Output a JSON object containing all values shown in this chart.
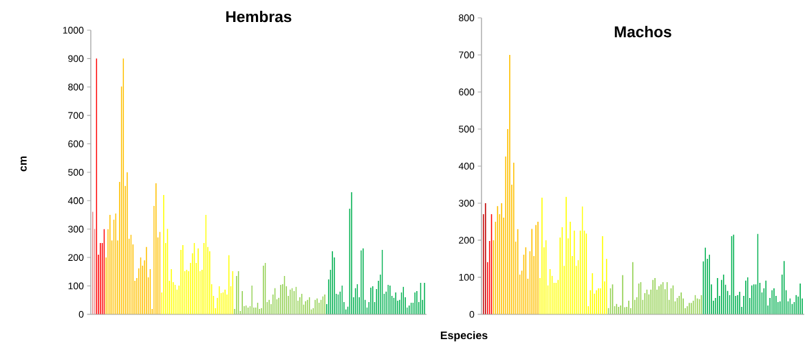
{
  "chart_data": [
    {
      "type": "bar",
      "title": "Hembras",
      "ylabel": "cm",
      "tick_labels": "y",
      "ylim": [
        0,
        1000
      ],
      "yticks": [
        0,
        100,
        200,
        300,
        400,
        500,
        600,
        700,
        800,
        900,
        1000
      ],
      "categories": [
        null,
        null,
        null,
        null,
        null,
        null,
        null,
        null,
        null,
        null,
        null,
        null,
        null,
        null,
        null,
        null,
        null,
        null,
        null,
        null,
        null,
        null,
        null,
        null,
        null,
        null,
        null,
        null,
        null,
        null,
        null,
        null,
        null,
        null,
        null,
        null,
        null,
        null,
        null,
        null,
        null,
        null,
        null,
        null,
        null,
        null,
        null,
        null,
        null,
        null,
        null,
        null,
        null,
        null,
        null,
        null,
        null,
        null,
        null,
        null,
        null,
        null,
        null,
        null,
        null,
        null,
        null,
        null,
        null,
        null,
        null,
        null,
        null,
        null,
        null,
        null,
        null,
        null,
        null,
        null,
        null,
        null,
        null,
        null,
        null,
        null,
        null,
        null,
        null,
        null,
        null,
        null,
        null,
        null,
        null,
        null,
        null,
        null,
        null,
        null,
        null,
        null,
        null,
        null,
        null,
        null,
        null,
        null,
        null,
        null,
        null,
        null,
        null,
        null,
        null,
        null,
        null,
        null,
        null,
        null,
        null,
        null,
        null,
        null,
        null,
        null,
        null,
        null,
        null,
        null,
        null,
        null,
        null,
        null,
        null,
        null,
        null,
        null,
        null,
        null,
        null,
        null,
        null,
        null,
        null,
        null,
        null,
        null,
        null,
        null,
        null,
        null,
        null,
        null,
        null,
        null,
        null,
        null,
        null,
        null,
        null,
        null,
        null,
        null,
        null,
        null,
        null,
        null,
        null,
        null,
        null,
        null,
        null,
        null
      ],
      "values": [
        361,
        301,
        900,
        210,
        251,
        251,
        300,
        200,
        300,
        350,
        260,
        333,
        355,
        260,
        466,
        802,
        900,
        452,
        500,
        266,
        280,
        246,
        118,
        128,
        162,
        200,
        171,
        190,
        237,
        130,
        159,
        19,
        382,
        461,
        271,
        290,
        77,
        420,
        251,
        301,
        118,
        159,
        113,
        104,
        87,
        101,
        227,
        244,
        152,
        157,
        152,
        181,
        215,
        251,
        181,
        232,
        152,
        157,
        251,
        350,
        237,
        222,
        106,
        65,
        22,
        58,
        99,
        75,
        77,
        87,
        70,
        208,
        99,
        152,
        19,
        135,
        152,
        12,
        82,
        29,
        31,
        24,
        29,
        101,
        24,
        24,
        41,
        19,
        22,
        171,
        181,
        43,
        51,
        36,
        70,
        92,
        53,
        58,
        104,
        106,
        135,
        99,
        65,
        87,
        92,
        82,
        97,
        48,
        60,
        72,
        34,
        46,
        51,
        60,
        17,
        22,
        51,
        56,
        41,
        51,
        63,
        70,
        36,
        123,
        157,
        222,
        200,
        72,
        70,
        80,
        101,
        43,
        17,
        27,
        372,
        430,
        60,
        92,
        106,
        60,
        225,
        232,
        51,
        24,
        43,
        94,
        99,
        43,
        89,
        118,
        140,
        227,
        72,
        80,
        104,
        101,
        65,
        58,
        77,
        48,
        51,
        77,
        97,
        60,
        24,
        31,
        41,
        41,
        77,
        82,
        43,
        111,
        51,
        111
      ],
      "colors": [
        "#e88c8c",
        "#e88c8c",
        "#ff0000",
        "#ff0000",
        "#ff0000",
        "#ff0000",
        "#ff0000",
        "#ffc000",
        "#ffc000",
        "#ffc000",
        "#ffc000",
        "#ffc000",
        "#ffc000",
        "#ffc000",
        "#ffc000",
        "#ffc000",
        "#ffc000",
        "#ffc000",
        "#ffc000",
        "#ffc000",
        "#ffc000",
        "#ffc000",
        "#ffc000",
        "#ffc000",
        "#ffc000",
        "#ffc000",
        "#ffc000",
        "#ffc000",
        "#ffc000",
        "#ffc000",
        "#ffc000",
        "#ffc000",
        "#ffc000",
        "#ffc000",
        "#ffc000",
        "#ffc000",
        "#ffff00",
        "#ffff00",
        "#ffff00",
        "#ffff00",
        "#ffff00",
        "#ffff00",
        "#ffff00",
        "#ffff00",
        "#ffff00",
        "#ffff00",
        "#ffff00",
        "#ffff00",
        "#ffff00",
        "#ffff00",
        "#ffff00",
        "#ffff00",
        "#ffff00",
        "#ffff00",
        "#ffff00",
        "#ffff00",
        "#ffff00",
        "#ffff00",
        "#ffff00",
        "#ffff00",
        "#ffff00",
        "#ffff00",
        "#ffff00",
        "#ffff00",
        "#ffff00",
        "#ffff00",
        "#ffff00",
        "#ffff00",
        "#ffff00",
        "#ffff00",
        "#ffff00",
        "#ffff00",
        "#ffff00",
        "#ffff00",
        "#92d050",
        "#92d050",
        "#92d050",
        "#92d050",
        "#92d050",
        "#92d050",
        "#92d050",
        "#92d050",
        "#92d050",
        "#92d050",
        "#92d050",
        "#92d050",
        "#92d050",
        "#92d050",
        "#92d050",
        "#92d050",
        "#92d050",
        "#92d050",
        "#92d050",
        "#92d050",
        "#92d050",
        "#92d050",
        "#92d050",
        "#92d050",
        "#92d050",
        "#92d050",
        "#92d050",
        "#92d050",
        "#92d050",
        "#92d050",
        "#92d050",
        "#92d050",
        "#92d050",
        "#92d050",
        "#92d050",
        "#92d050",
        "#92d050",
        "#92d050",
        "#92d050",
        "#92d050",
        "#92d050",
        "#92d050",
        "#92d050",
        "#92d050",
        "#92d050",
        "#92d050",
        "#92d050",
        "#92d050",
        "#00b050",
        "#00b050",
        "#00b050",
        "#00b050",
        "#00b050",
        "#00b050",
        "#00b050",
        "#00b050",
        "#00b050",
        "#00b050",
        "#00b050",
        "#00b050",
        "#00b050",
        "#00b050",
        "#00b050",
        "#00b050",
        "#00b050",
        "#00b050",
        "#00b050",
        "#00b050",
        "#00b050",
        "#00b050",
        "#00b050",
        "#00b050",
        "#00b050",
        "#00b050",
        "#00b050",
        "#00b050",
        "#00b050",
        "#00b050",
        "#00b050",
        "#00b050",
        "#00b050",
        "#00b050",
        "#00b050",
        "#00b050",
        "#00b050",
        "#00b050",
        "#00b050",
        "#00b050",
        "#00b050",
        "#00b050",
        "#00b050",
        "#00b050",
        "#00b050",
        "#00b050",
        "#00b050",
        "#00b050",
        "#00b050",
        "#00b050",
        "#00b050",
        "#00b050"
      ]
    },
    {
      "type": "bar",
      "title": "Machos",
      "xlabel": "Especies",
      "tick_labels": "y",
      "ylim": [
        0,
        800
      ],
      "yticks": [
        0,
        100,
        200,
        300,
        400,
        500,
        600,
        700,
        800
      ],
      "categories": [
        null,
        null,
        null,
        null,
        null,
        null,
        null,
        null,
        null,
        null,
        null,
        null,
        null,
        null,
        null,
        null,
        null,
        null,
        null,
        null,
        null,
        null,
        null,
        null,
        null,
        null,
        null,
        null,
        null,
        null,
        null,
        null,
        null,
        null,
        null,
        null,
        null,
        null,
        null,
        null,
        null,
        null,
        null,
        null,
        null,
        null,
        null,
        null,
        null,
        null,
        null,
        null,
        null,
        null,
        null,
        null,
        null,
        null,
        null,
        null,
        null,
        null,
        null,
        null,
        null,
        null,
        null,
        null,
        null,
        null,
        null,
        null,
        null,
        null,
        null,
        null,
        null,
        null,
        null,
        null,
        null,
        null,
        null,
        null,
        null,
        null,
        null,
        null,
        null,
        null,
        null,
        null,
        null,
        null,
        null,
        null,
        null,
        null,
        null,
        null,
        null,
        null,
        null,
        null,
        null,
        null,
        null,
        null,
        null,
        null,
        null,
        null,
        null,
        null,
        null,
        null,
        null,
        null,
        null,
        null,
        null,
        null,
        null,
        null,
        null,
        null,
        null,
        null,
        null,
        null,
        null,
        null,
        null,
        null,
        null,
        null,
        null,
        null,
        null,
        null,
        null,
        null,
        null,
        null,
        null,
        null,
        null,
        null,
        null,
        null,
        null,
        null,
        null,
        null,
        null,
        null,
        null,
        null,
        null
      ],
      "values": [
        270,
        300,
        141,
        198,
        270,
        200,
        250,
        292,
        270,
        300,
        261,
        426,
        500,
        700,
        350,
        409,
        196,
        230,
        107,
        118,
        161,
        181,
        96,
        170,
        231,
        157,
        241,
        250,
        98,
        315,
        181,
        200,
        78,
        122,
        104,
        85,
        85,
        93,
        207,
        235,
        131,
        317,
        205,
        250,
        157,
        226,
        131,
        146,
        226,
        291,
        226,
        218,
        22,
        65,
        111,
        56,
        65,
        70,
        70,
        211,
        89,
        150,
        17,
        70,
        81,
        22,
        28,
        20,
        24,
        106,
        19,
        20,
        37,
        17,
        141,
        39,
        46,
        83,
        87,
        39,
        57,
        67,
        54,
        67,
        93,
        98,
        67,
        76,
        81,
        87,
        68,
        87,
        39,
        70,
        78,
        35,
        44,
        50,
        59,
        43,
        17,
        22,
        31,
        31,
        37,
        52,
        43,
        41,
        52,
        143,
        180,
        150,
        161,
        81,
        37,
        44,
        98,
        50,
        93,
        107,
        80,
        63,
        52,
        211,
        215,
        50,
        52,
        61,
        20,
        50,
        91,
        100,
        44,
        78,
        81,
        81,
        217,
        85,
        59,
        70,
        91,
        24,
        44,
        65,
        70,
        50,
        33,
        35,
        107,
        144,
        65,
        35,
        43,
        28,
        33,
        52,
        48,
        83,
        43
      ],
      "colors": [
        "#c00000",
        "#c00000",
        "#ff0000",
        "#ff0000",
        "#ff0000",
        "#ffc000",
        "#ffc000",
        "#ffc000",
        "#ffc000",
        "#ffc000",
        "#ffc000",
        "#ffc000",
        "#ffc000",
        "#ffc000",
        "#ffc000",
        "#ffc000",
        "#ffc000",
        "#ffc000",
        "#ffc000",
        "#ffc000",
        "#ffc000",
        "#ffc000",
        "#ffc000",
        "#ffc000",
        "#ffc000",
        "#ffc000",
        "#ffc000",
        "#ffc000",
        "#ffff00",
        "#ffff00",
        "#ffff00",
        "#ffff00",
        "#ffff00",
        "#ffff00",
        "#ffff00",
        "#ffff00",
        "#ffff00",
        "#ffff00",
        "#ffff00",
        "#ffff00",
        "#ffff00",
        "#ffff00",
        "#ffff00",
        "#ffff00",
        "#ffff00",
        "#ffff00",
        "#ffff00",
        "#ffff00",
        "#ffff00",
        "#ffff00",
        "#ffff00",
        "#ffff00",
        "#ffff00",
        "#ffff00",
        "#ffff00",
        "#ffff00",
        "#ffff00",
        "#ffff00",
        "#ffff00",
        "#ffff00",
        "#ffff00",
        "#ffff00",
        "#92d050",
        "#92d050",
        "#92d050",
        "#92d050",
        "#92d050",
        "#92d050",
        "#92d050",
        "#92d050",
        "#92d050",
        "#92d050",
        "#92d050",
        "#92d050",
        "#92d050",
        "#92d050",
        "#92d050",
        "#92d050",
        "#92d050",
        "#92d050",
        "#92d050",
        "#92d050",
        "#92d050",
        "#92d050",
        "#92d050",
        "#92d050",
        "#92d050",
        "#92d050",
        "#92d050",
        "#92d050",
        "#92d050",
        "#92d050",
        "#92d050",
        "#92d050",
        "#92d050",
        "#92d050",
        "#92d050",
        "#92d050",
        "#92d050",
        "#92d050",
        "#92d050",
        "#92d050",
        "#92d050",
        "#92d050",
        "#92d050",
        "#92d050",
        "#92d050",
        "#92d050",
        "#92d050",
        "#00b050",
        "#00b050",
        "#00b050",
        "#00b050",
        "#00b050",
        "#00b050",
        "#00b050",
        "#00b050",
        "#00b050",
        "#00b050",
        "#00b050",
        "#00b050",
        "#00b050",
        "#00b050",
        "#00b050",
        "#00b050",
        "#00b050",
        "#00b050",
        "#00b050",
        "#00b050",
        "#00b050",
        "#00b050",
        "#00b050",
        "#00b050",
        "#00b050",
        "#00b050",
        "#00b050",
        "#00b050",
        "#00b050",
        "#00b050",
        "#00b050",
        "#00b050",
        "#00b050",
        "#00b050",
        "#00b050",
        "#00b050",
        "#00b050",
        "#00b050",
        "#00b050",
        "#00b050",
        "#00b050",
        "#00b050",
        "#00b050",
        "#00b050",
        "#00b050",
        "#00b050",
        "#00b050",
        "#00b050",
        "#00b050",
        "#00b050"
      ]
    }
  ]
}
